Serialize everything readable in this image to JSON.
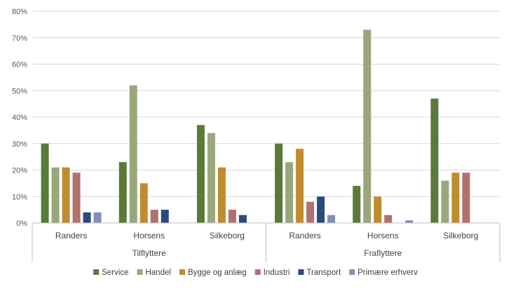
{
  "chart_data": {
    "type": "bar",
    "title": "",
    "xlabel": "",
    "ylabel": "",
    "ylim": [
      0,
      80
    ],
    "y_ticks": [
      "0%",
      "10%",
      "20%",
      "30%",
      "40%",
      "50%",
      "60%",
      "70%",
      "80%"
    ],
    "grid": true,
    "legend_position": "bottom",
    "groups": [
      {
        "name": "Tilflyttere",
        "categories": [
          "Randers",
          "Horsens",
          "Silkeborg"
        ]
      },
      {
        "name": "Fraflyttere",
        "categories": [
          "Randers",
          "Horsens",
          "Silkeborg"
        ]
      }
    ],
    "series": [
      {
        "name": "Service",
        "color": "#5a7a3a",
        "values": [
          30,
          23,
          37,
          30,
          14,
          47
        ]
      },
      {
        "name": "Handel",
        "color": "#9aa77c",
        "values": [
          21,
          52,
          34,
          23,
          73,
          16
        ]
      },
      {
        "name": "Bygge og anlæg",
        "color": "#c08c2e",
        "values": [
          21,
          15,
          21,
          28,
          10,
          19
        ]
      },
      {
        "name": "Industri",
        "color": "#b0716f",
        "values": [
          19,
          5,
          5,
          8,
          3,
          19
        ]
      },
      {
        "name": "Transport",
        "color": "#2c4a7c",
        "values": [
          4,
          5,
          3,
          10,
          0,
          0
        ]
      },
      {
        "name": "Primære erhverv",
        "color": "#8090b8",
        "values": [
          4,
          0,
          0,
          3,
          1,
          0
        ]
      }
    ]
  }
}
